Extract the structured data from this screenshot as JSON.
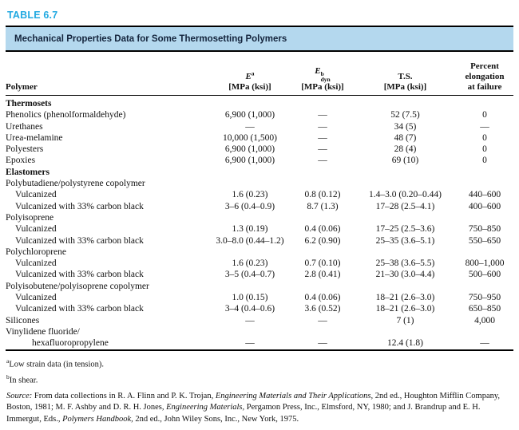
{
  "page": {
    "table_label": "TABLE 6.7",
    "banner_title": "Mechanical Properties Data for Some Thermosetting Polymers"
  },
  "colors": {
    "label_cyan": "#21a9e1",
    "banner_bg": "#b4d8ee",
    "banner_text": "#14243c"
  },
  "header": {
    "polymer": "Polymer",
    "col_e": {
      "symbol": "E",
      "sup": "a",
      "unit": "[MPa (ksi)]"
    },
    "col_edyn": {
      "symbol": "E",
      "sup": "b",
      "sub": "dyn",
      "unit": "[MPa (ksi)]"
    },
    "col_ts": {
      "label": "T.S.",
      "unit": "[MPa (ksi)]"
    },
    "col_elong": {
      "lines": [
        "Percent",
        "elongation",
        "at failure"
      ]
    }
  },
  "rows": [
    {
      "type": "section",
      "indent": 0,
      "polymer": "Thermosets",
      "e": "",
      "edyn": "",
      "ts": "",
      "elong": ""
    },
    {
      "type": "data",
      "indent": 0,
      "polymer": "Phenolics (phenolformaldehyde)",
      "e": "6,900 (1,000)",
      "edyn": "—",
      "ts": "52 (7.5)",
      "elong": "0"
    },
    {
      "type": "data",
      "indent": 0,
      "polymer": "Urethanes",
      "e": "—",
      "edyn": "—",
      "ts": "34 (5)",
      "elong": "—"
    },
    {
      "type": "data",
      "indent": 0,
      "polymer": "Urea-melamine",
      "e": "10,000 (1,500)",
      "edyn": "—",
      "ts": "48 (7)",
      "elong": "0"
    },
    {
      "type": "data",
      "indent": 0,
      "polymer": "Polyesters",
      "e": "6,900 (1,000)",
      "edyn": "—",
      "ts": "28 (4)",
      "elong": "0"
    },
    {
      "type": "data",
      "indent": 0,
      "polymer": "Epoxies",
      "e": "6,900 (1,000)",
      "edyn": "—",
      "ts": "69 (10)",
      "elong": "0"
    },
    {
      "type": "section",
      "indent": 0,
      "polymer": "Elastomers",
      "e": "",
      "edyn": "",
      "ts": "",
      "elong": ""
    },
    {
      "type": "group",
      "indent": 0,
      "polymer": "Polybutadiene/polystyrene copolymer",
      "e": "",
      "edyn": "",
      "ts": "",
      "elong": ""
    },
    {
      "type": "data",
      "indent": 1,
      "polymer": "Vulcanized",
      "e": "1.6 (0.23)",
      "edyn": "0.8 (0.12)",
      "ts": "1.4–3.0 (0.20–0.44)",
      "elong": "440–600"
    },
    {
      "type": "data",
      "indent": 1,
      "polymer": "Vulcanized with 33% carbon black",
      "e": "3–6 (0.4–0.9)",
      "edyn": "8.7 (1.3)",
      "ts": "17–28 (2.5–4.1)",
      "elong": "400–600"
    },
    {
      "type": "group",
      "indent": 0,
      "polymer": "Polyisoprene",
      "e": "",
      "edyn": "",
      "ts": "",
      "elong": ""
    },
    {
      "type": "data",
      "indent": 1,
      "polymer": "Vulcanized",
      "e": "1.3 (0.19)",
      "edyn": "0.4 (0.06)",
      "ts": "17–25 (2.5–3.6)",
      "elong": "750–850"
    },
    {
      "type": "data",
      "indent": 1,
      "polymer": "Vulcanized with 33% carbon black",
      "e": "3.0–8.0 (0.44–1.2)",
      "edyn": "6.2 (0.90)",
      "ts": "25–35 (3.6–5.1)",
      "elong": "550–650"
    },
    {
      "type": "group",
      "indent": 0,
      "polymer": "Polychloroprene",
      "e": "",
      "edyn": "",
      "ts": "",
      "elong": ""
    },
    {
      "type": "data",
      "indent": 1,
      "polymer": "Vulcanized",
      "e": "1.6 (0.23)",
      "edyn": "0.7 (0.10)",
      "ts": "25–38 (3.6–5.5)",
      "elong": "800–1,000"
    },
    {
      "type": "data",
      "indent": 1,
      "polymer": "Vulcanized with 33% carbon black",
      "e": "3–5 (0.4–0.7)",
      "edyn": "2.8 (0.41)",
      "ts": "21–30 (3.0–4.4)",
      "elong": "500–600"
    },
    {
      "type": "group",
      "indent": 0,
      "polymer": "Polyisobutene/polyisoprene copolymer",
      "e": "",
      "edyn": "",
      "ts": "",
      "elong": ""
    },
    {
      "type": "data",
      "indent": 1,
      "polymer": "Vulcanized",
      "e": "1.0 (0.15)",
      "edyn": "0.4 (0.06)",
      "ts": "18–21 (2.6–3.0)",
      "elong": "750–950"
    },
    {
      "type": "data",
      "indent": 1,
      "polymer": "Vulcanized with 33% carbon black",
      "e": "3–4 (0.4–0.6)",
      "edyn": "3.6 (0.52)",
      "ts": "18–21 (2.6–3.0)",
      "elong": "650–850"
    },
    {
      "type": "data",
      "indent": 0,
      "polymer": "Silicones",
      "e": "—",
      "edyn": "—",
      "ts": "7 (1)",
      "elong": "4,000"
    },
    {
      "type": "group",
      "indent": 0,
      "polymer": "Vinylidene fluoride/",
      "e": "",
      "edyn": "",
      "ts": "",
      "elong": ""
    },
    {
      "type": "data",
      "indent": 2,
      "polymer": "hexafluoropropylene",
      "e": "—",
      "edyn": "—",
      "ts": "12.4 (1.8)",
      "elong": "—"
    }
  ],
  "footnotes": [
    {
      "marker": "a",
      "text": "Low strain data (in tension)."
    },
    {
      "marker": "b",
      "text": "In shear."
    }
  ],
  "source_segments": [
    {
      "text": "Source:",
      "italic": true
    },
    {
      "text": " From data collections in R. A. Flinn and P. K. Trojan, ",
      "italic": false
    },
    {
      "text": "Engineering Materials and Their Applications,",
      "italic": true
    },
    {
      "text": " 2nd ed., Houghton Mifflin Company, Boston, 1981; M. F. Ashby and D. R. H. Jones, ",
      "italic": false
    },
    {
      "text": "Engineering Materials,",
      "italic": true
    },
    {
      "text": " Pergamon Press, Inc., Elmsford, NY, 1980; and J. Brandrup and E. H. Immergut, Eds., ",
      "italic": false
    },
    {
      "text": "Polymers Handbook,",
      "italic": true
    },
    {
      "text": " 2nd ed., John Wiley Sons, Inc., New York, 1975.",
      "italic": false
    }
  ]
}
